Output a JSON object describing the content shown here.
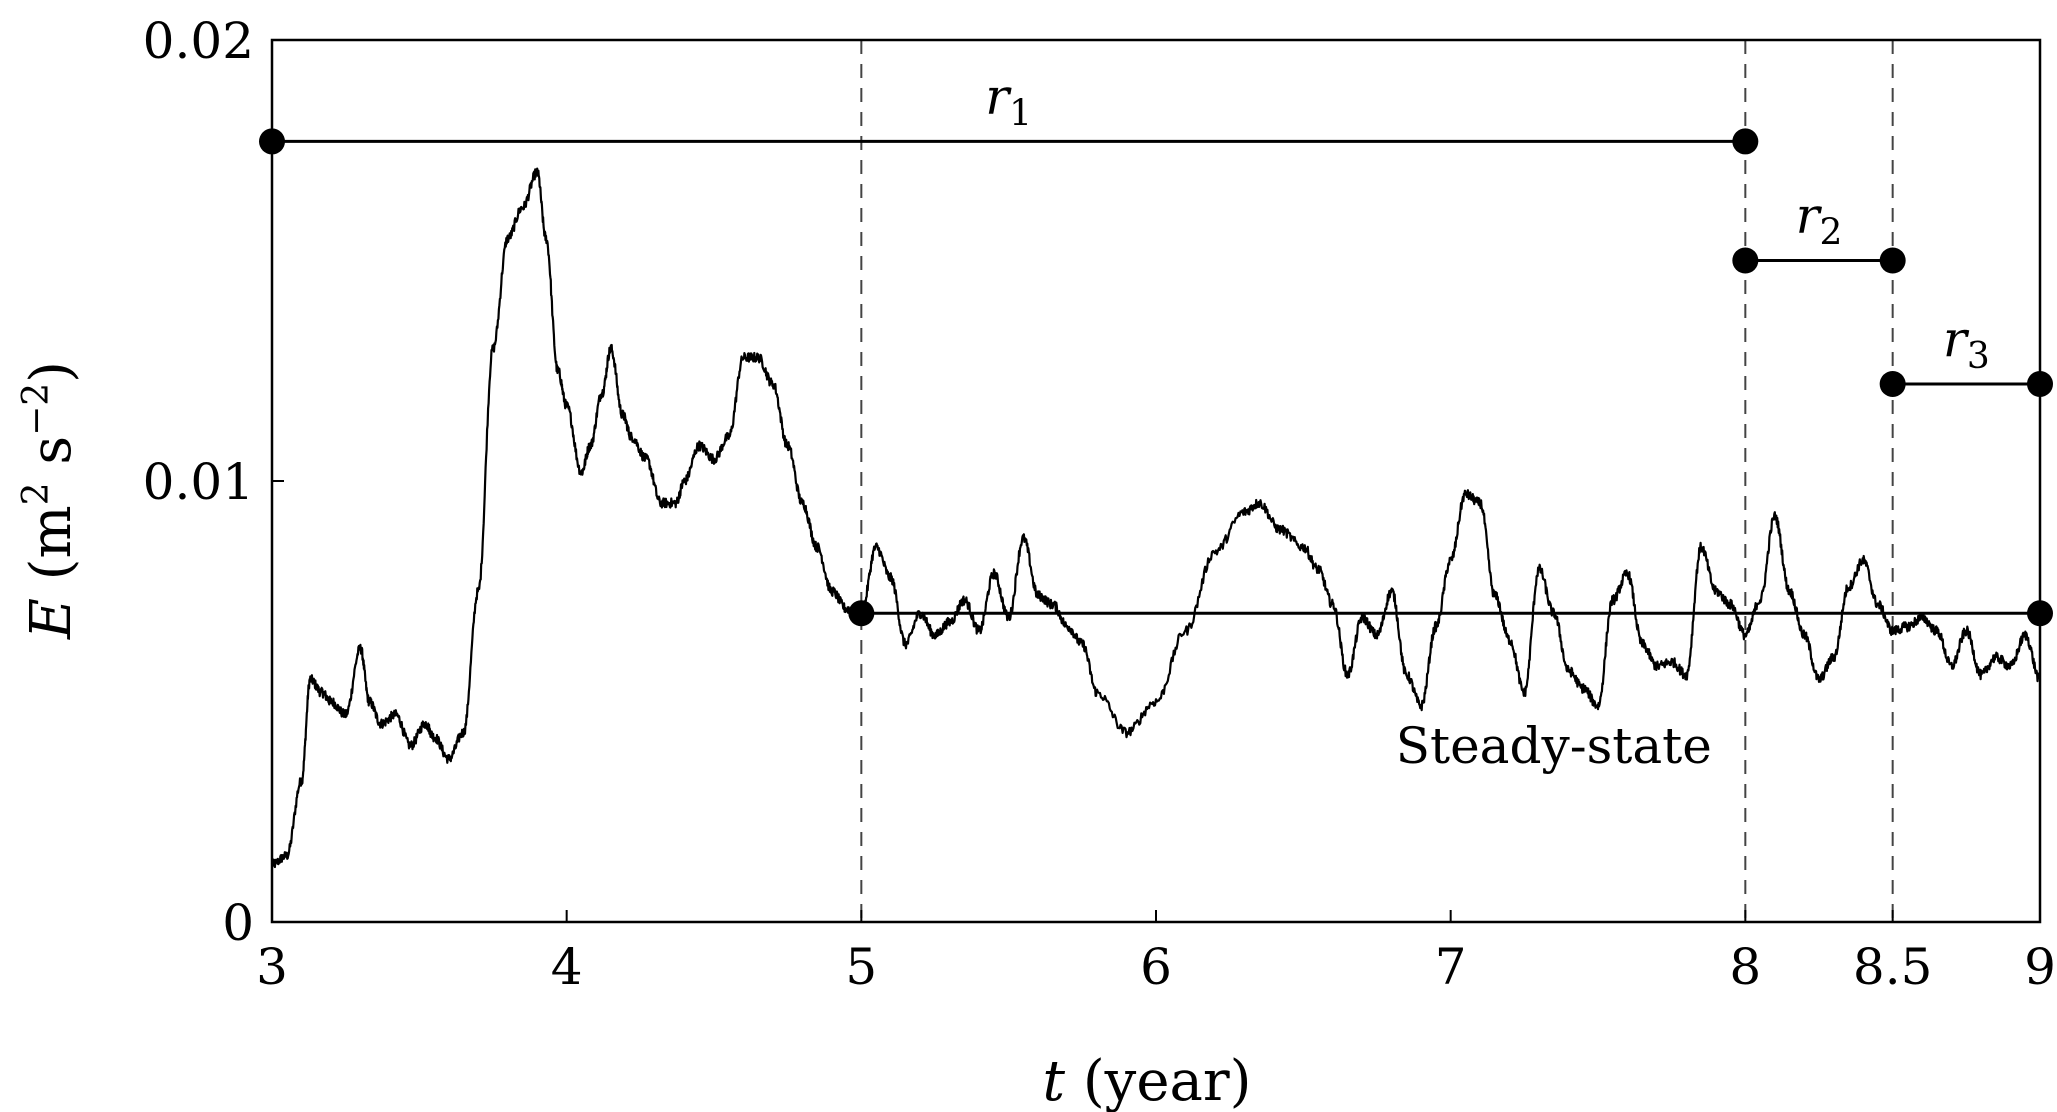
{
  "chart_data": {
    "type": "line",
    "xlabel": {
      "var": "t",
      "unit": " (year)"
    },
    "ylabel": {
      "var": "E",
      "open": " (m",
      "sup1": "2",
      "mid": " s",
      "sup2": "−2",
      "close": ")"
    },
    "xticks": [
      {
        "value": 3,
        "label": "3"
      },
      {
        "value": 4,
        "label": "4"
      },
      {
        "value": 5,
        "label": "5"
      },
      {
        "value": 6,
        "label": "6"
      },
      {
        "value": 7,
        "label": "7"
      },
      {
        "value": 8,
        "label": "8"
      },
      {
        "value": 8.5,
        "label": "8.5"
      },
      {
        "value": 9,
        "label": "9"
      }
    ],
    "yticks": [
      {
        "value": 0,
        "label": "0"
      },
      {
        "value": 0.01,
        "label": "0.01"
      },
      {
        "value": 0.02,
        "label": "0.02"
      }
    ],
    "xlim": [
      3,
      9
    ],
    "ylim": [
      0,
      0.02
    ],
    "grid": false,
    "vlines": [
      5,
      8,
      8.5
    ],
    "series": [
      {
        "x": [
          3.0,
          3.05,
          3.1,
          3.13,
          3.17,
          3.2,
          3.25,
          3.3,
          3.33,
          3.37,
          3.42,
          3.47,
          3.52,
          3.55,
          3.6,
          3.65,
          3.7,
          3.75,
          3.8,
          3.85,
          3.9,
          3.93,
          3.97,
          4.0,
          4.05,
          4.08,
          4.12,
          4.15,
          4.19,
          4.22,
          4.27,
          4.32,
          4.37,
          4.4,
          4.45,
          4.5,
          4.55,
          4.6,
          4.65,
          4.7,
          4.75,
          4.8,
          4.85,
          4.9,
          4.95,
          5.0,
          5.05,
          5.1,
          5.15,
          5.2,
          5.25,
          5.3,
          5.35,
          5.4,
          5.45,
          5.5,
          5.55,
          5.6,
          5.65,
          5.7,
          5.75,
          5.8,
          5.9,
          6.0,
          6.1,
          6.2,
          6.3,
          6.35,
          6.42,
          6.5,
          6.55,
          6.6,
          6.65,
          6.7,
          6.75,
          6.8,
          6.85,
          6.9,
          6.95,
          7.0,
          7.05,
          7.1,
          7.15,
          7.2,
          7.25,
          7.3,
          7.35,
          7.4,
          7.45,
          7.5,
          7.55,
          7.6,
          7.65,
          7.7,
          7.75,
          7.8,
          7.85,
          7.9,
          7.95,
          8.0,
          8.05,
          8.1,
          8.15,
          8.2,
          8.25,
          8.3,
          8.35,
          8.4,
          8.45,
          8.5,
          8.55,
          8.6,
          8.65,
          8.7,
          8.75,
          8.8,
          8.85,
          8.9,
          8.95,
          9.0
        ],
        "y": [
          0.0013,
          0.0015,
          0.0032,
          0.0055,
          0.0052,
          0.005,
          0.0047,
          0.0062,
          0.005,
          0.0045,
          0.0047,
          0.004,
          0.0045,
          0.0042,
          0.0037,
          0.0043,
          0.0075,
          0.013,
          0.0155,
          0.0162,
          0.017,
          0.0155,
          0.0125,
          0.0117,
          0.0102,
          0.0108,
          0.012,
          0.013,
          0.0115,
          0.011,
          0.0105,
          0.0095,
          0.0095,
          0.01,
          0.0108,
          0.0105,
          0.011,
          0.0128,
          0.0128,
          0.0122,
          0.0108,
          0.0095,
          0.0085,
          0.0075,
          0.0071,
          0.007,
          0.0085,
          0.0078,
          0.0063,
          0.007,
          0.0065,
          0.0068,
          0.0073,
          0.0066,
          0.0079,
          0.0069,
          0.0087,
          0.0074,
          0.0072,
          0.0067,
          0.0063,
          0.0052,
          0.0043,
          0.005,
          0.0066,
          0.0084,
          0.0093,
          0.0095,
          0.0089,
          0.0085,
          0.008,
          0.0072,
          0.0056,
          0.0069,
          0.0065,
          0.0075,
          0.0056,
          0.0049,
          0.0067,
          0.0082,
          0.0097,
          0.0095,
          0.0074,
          0.0064,
          0.0052,
          0.008,
          0.007,
          0.0057,
          0.0053,
          0.0049,
          0.0073,
          0.0079,
          0.0063,
          0.0058,
          0.0059,
          0.0056,
          0.0085,
          0.0075,
          0.0072,
          0.0065,
          0.0073,
          0.0092,
          0.0075,
          0.0065,
          0.0055,
          0.006,
          0.0076,
          0.0082,
          0.0072,
          0.0066,
          0.0067,
          0.0069,
          0.0066,
          0.0058,
          0.0066,
          0.0056,
          0.006,
          0.0058,
          0.0065,
          0.0055
        ]
      }
    ],
    "ranges": [
      {
        "label": "r",
        "sub": "1",
        "x0": 3,
        "x1": 8,
        "y": 0.0177
      },
      {
        "label": "r",
        "sub": "2",
        "x0": 8,
        "x1": 8.5,
        "y": 0.015
      },
      {
        "label": "r",
        "sub": "3",
        "x0": 8.5,
        "x1": 9,
        "y": 0.0122
      }
    ],
    "mean_line": {
      "x0": 5,
      "x1": 9,
      "y": 0.007
    },
    "annotations": [
      {
        "text": "Steady-state",
        "x": 7.35,
        "y": 0.0036
      }
    ]
  }
}
